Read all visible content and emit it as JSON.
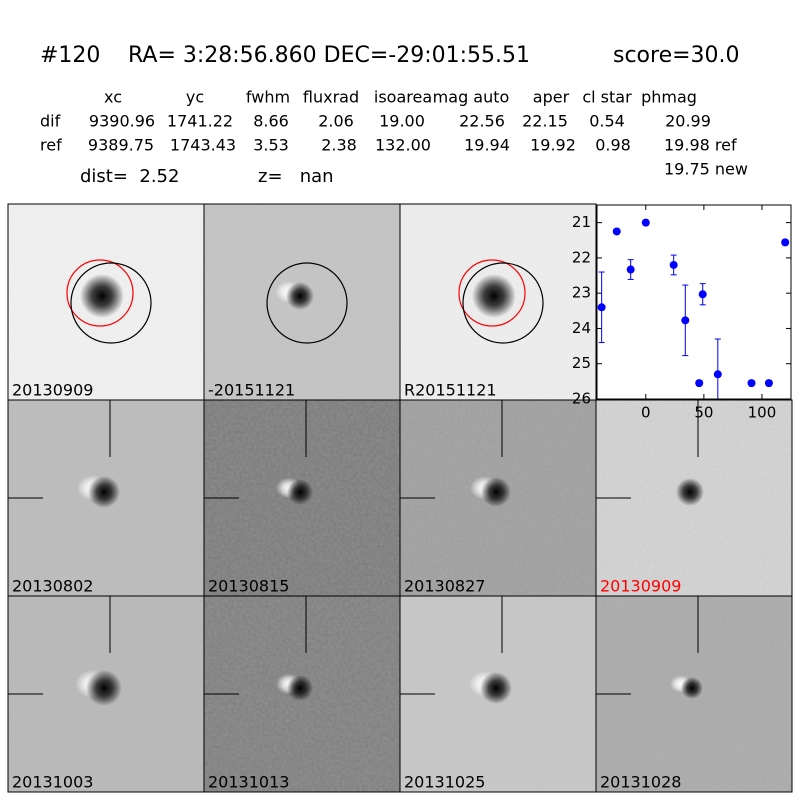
{
  "header": {
    "title": [
      "#120",
      "RA= 3:28:56.860 DEC=-29:01:55.51",
      "score=30.0"
    ]
  },
  "table": {
    "columns": [
      "xc",
      "yc",
      "fwhm",
      "fluxrad",
      "isoarea",
      "mag auto",
      "aper",
      "cl star",
      "phmag"
    ],
    "rows": [
      [
        "dif",
        "9390.96",
        "1741.22",
        "8.66",
        "2.06",
        "19.00",
        "22.56",
        "22.15",
        "0.54",
        "20.99"
      ],
      [
        "ref",
        "9389.75",
        "1743.43",
        "3.53",
        "2.38",
        "132.00",
        "19.94",
        "19.92",
        "0.98",
        "19.98 ref"
      ]
    ],
    "extra": "19.75 new"
  },
  "info": [
    "dist=  2.52",
    "z=   nan"
  ],
  "panels": [
    "20130909",
    "-20151121",
    "R20151121",
    "20130802",
    "20130815",
    "20130827",
    "20130909",
    "20131003",
    "20131013",
    "20131025",
    "20131028"
  ],
  "chart_data": {
    "type": "scatter",
    "x": [
      -38,
      -25,
      -13,
      0,
      24,
      34,
      46,
      49,
      62,
      91,
      106,
      120
    ],
    "values": [
      23.4,
      21.25,
      22.33,
      21.0,
      22.2,
      23.77,
      25.55,
      23.03,
      25.3,
      25.55,
      25.55,
      21.56
    ],
    "errors": [
      1.0,
      0.05,
      0.28,
      0.05,
      0.28,
      1.0,
      0.07,
      0.3,
      1.0,
      0.07,
      0.07,
      0.07
    ],
    "color": "#0000ff",
    "xlim": [
      -42,
      125
    ],
    "ylim": [
      20.5,
      26
    ],
    "y_inverted": true,
    "xticks": [
      0,
      50,
      100
    ],
    "yticks": [
      21,
      22,
      23,
      24,
      25,
      26
    ]
  }
}
